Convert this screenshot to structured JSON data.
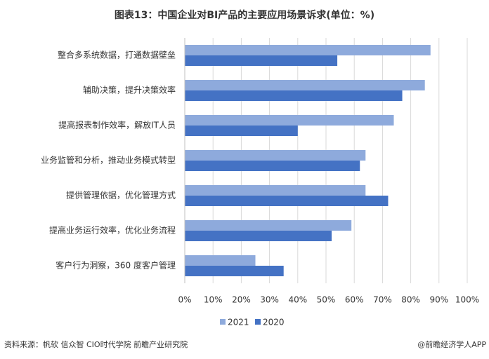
{
  "chart_data": {
    "type": "barh",
    "title": "图表13：中国企业对BI产品的主要应用场景诉求(单位：%)",
    "categories": [
      "整合多系统数据，打通数据壁垒",
      "辅助决策，提升决策效率",
      "提高报表制作效率，解放IT人员",
      "业务监管和分析，推动业务模式转型",
      "提供管理依据，优化管理方式",
      "提高业务运行效率，优化业务流程",
      "客户行为洞察，360 度客户管理"
    ],
    "series": [
      {
        "name": "2021",
        "color": "#8eaadc",
        "values": [
          87,
          85,
          74,
          64,
          64,
          59,
          25
        ]
      },
      {
        "name": "2020",
        "color": "#4472c4",
        "values": [
          54,
          77,
          40,
          62,
          72,
          52,
          35
        ]
      }
    ],
    "xlim": [
      0,
      100
    ],
    "xticks": [
      {
        "value": 0,
        "label": "0%"
      },
      {
        "value": 10,
        "label": "10%"
      },
      {
        "value": 20,
        "label": "20%"
      },
      {
        "value": 30,
        "label": "30%"
      },
      {
        "value": 40,
        "label": "40%"
      },
      {
        "value": 50,
        "label": "50%"
      },
      {
        "value": 60,
        "label": "60%"
      },
      {
        "value": 70,
        "label": "70%"
      },
      {
        "value": 80,
        "label": "80%"
      },
      {
        "value": 90,
        "label": "90%"
      },
      {
        "value": 100,
        "label": "100%"
      }
    ],
    "grid": true,
    "source": "资料来源：帆软 信众智 CIO时代学院 前瞻产业研究院",
    "credit": "@前瞻经济学人APP"
  }
}
